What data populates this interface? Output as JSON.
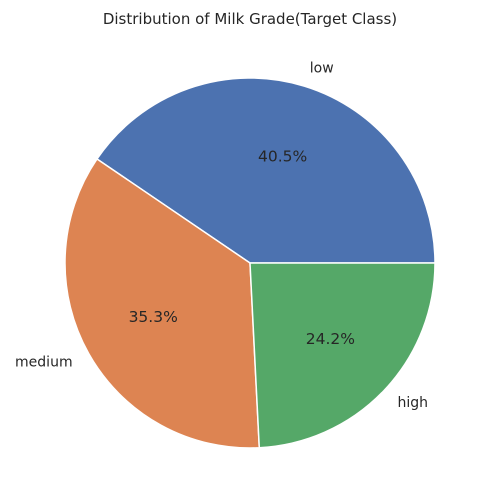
{
  "chart_data": {
    "type": "pie",
    "title": "Distribution of Milk Grade(Target Class)",
    "categories": [
      "low",
      "medium",
      "high"
    ],
    "values": [
      40.5,
      35.3,
      24.2
    ],
    "labels": [
      "40.5%",
      "35.3%",
      "24.2%"
    ],
    "colors": [
      "#4c72b0",
      "#dd8452",
      "#55a868"
    ],
    "start_angle_deg": 0,
    "direction": "counterclockwise",
    "legend": "none"
  }
}
